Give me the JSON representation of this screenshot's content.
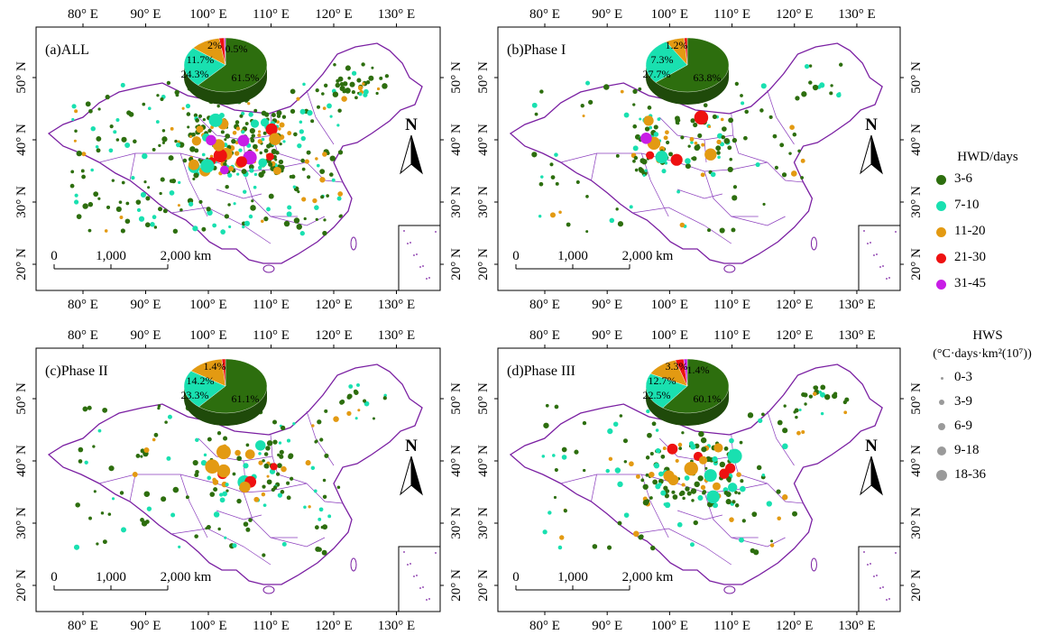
{
  "axes": {
    "x_ticks": [
      "80° E",
      "90° E",
      "100° E",
      "110° E",
      "120° E",
      "130° E"
    ],
    "y_ticks": [
      "50° N",
      "40° N",
      "30° N",
      "20° N"
    ]
  },
  "north_label": "N",
  "scale_bar": {
    "labels": [
      "0",
      "1,000",
      "2,000 km"
    ]
  },
  "panels": [
    {
      "label": "(a)ALL",
      "pie": [
        {
          "label": "61.5%",
          "value": 61.5
        },
        {
          "label": "24.3%",
          "value": 24.3
        },
        {
          "label": "11.7%",
          "value": 11.7
        },
        {
          "label": "2%",
          "value": 2.0
        },
        {
          "label": "0.5%",
          "value": 0.5
        }
      ]
    },
    {
      "label": "(b)Phase I",
      "pie": [
        {
          "label": "63.8%",
          "value": 63.8
        },
        {
          "label": "27.7%",
          "value": 27.7
        },
        {
          "label": "7.3%",
          "value": 7.3
        },
        {
          "label": "1.2%",
          "value": 1.2
        },
        {
          "label": "",
          "value": 0
        }
      ]
    },
    {
      "label": "(c)Phase II",
      "pie": [
        {
          "label": "61.1%",
          "value": 61.1
        },
        {
          "label": "23.3%",
          "value": 23.3
        },
        {
          "label": "14.2%",
          "value": 14.2
        },
        {
          "label": "1.4%",
          "value": 1.4
        },
        {
          "label": "",
          "value": 0
        }
      ]
    },
    {
      "label": "(d)Phase III",
      "pie": [
        {
          "label": "60.1%",
          "value": 60.1
        },
        {
          "label": "22.5%",
          "value": 22.5
        },
        {
          "label": "12.7%",
          "value": 12.7
        },
        {
          "label": "3.3%",
          "value": 3.3
        },
        {
          "label": "1.4%",
          "value": 1.4
        }
      ]
    }
  ],
  "legend": {
    "hwd_title": "HWD/days",
    "hwd_classes": [
      {
        "label": "3-6",
        "color": "#2d6e0e"
      },
      {
        "label": "7-10",
        "color": "#19e0b0"
      },
      {
        "label": "11-20",
        "color": "#e39a12"
      },
      {
        "label": "21-30",
        "color": "#ee1111"
      },
      {
        "label": "31-45",
        "color": "#c81ee6"
      }
    ],
    "hws_title": "HWS",
    "hws_unit": "(°C·days·km²(10⁷))",
    "hws_classes": [
      {
        "label": "0-3"
      },
      {
        "label": "3-9"
      },
      {
        "label": "6-9"
      },
      {
        "label": "9-18"
      },
      {
        "label": "18-36"
      }
    ]
  }
}
